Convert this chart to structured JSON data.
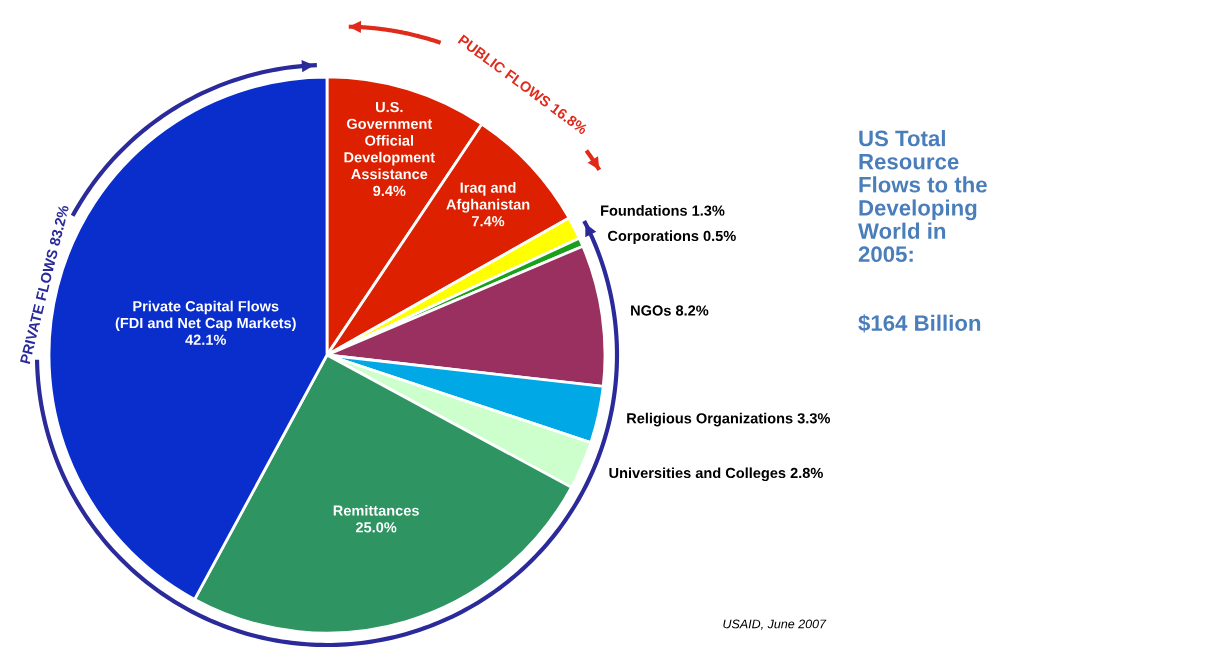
{
  "chart_data": {
    "type": "pie",
    "title": "US Total Resource Flows to the Developing World in 2005:",
    "subtitle": "$164 Billion",
    "categories": [
      "U.S. Government Official Development Assistance",
      "Iraq and Afghanistan",
      "Foundations",
      "Corporations",
      "NGOs",
      "Religious Organizations",
      "Universities and Colleges",
      "Remittances",
      "Private Capital Flows (FDI and Net Cap Markets)"
    ],
    "values": [
      9.4,
      7.4,
      1.3,
      0.5,
      8.2,
      3.3,
      2.8,
      25.0,
      42.1
    ],
    "colors": [
      "#dd2000",
      "#dd2000",
      "#ffff00",
      "#1aa01a",
      "#993060",
      "#00a8e6",
      "#ccffcc",
      "#2e9462",
      "#0a2ecc"
    ],
    "value_labels": [
      "9.4%",
      "7.4%",
      "1.3%",
      "0.5%",
      "8.2%",
      "3.3%",
      "2.8%",
      "25.0%",
      "42.1%"
    ],
    "annotations": [
      "PUBLIC FLOWS 16.8%",
      "PRIVATE FLOWS 83.2%",
      "USAID, June 2007"
    ]
  }
}
